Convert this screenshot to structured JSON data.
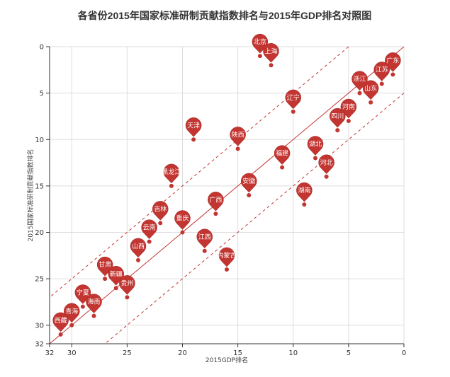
{
  "chart_data": {
    "type": "scatter",
    "title": "各省份2015年国家标准研制贡献指数排名与2015年GDP排名对照图",
    "xlabel": "2015GDP排名",
    "ylabel": "2015国家标准研制贡献指数排名",
    "x_reversed": true,
    "y_reversed": true,
    "xlim": [
      0,
      32
    ],
    "ylim": [
      0,
      32
    ],
    "x_ticks": [
      32,
      30,
      25,
      20,
      15,
      10,
      5,
      0
    ],
    "y_ticks": [
      0,
      5,
      10,
      15,
      20,
      25,
      30,
      32
    ],
    "grid": true,
    "reference_lines": [
      {
        "style": "solid",
        "offset": 0
      },
      {
        "style": "dashed",
        "offset": 5
      },
      {
        "style": "dashed",
        "offset": -5
      }
    ],
    "colors": {
      "pin": "#c23531",
      "pin_dark": "#a02523",
      "line": "#c23531",
      "grid": "#dddddd",
      "axis": "#333333"
    },
    "points": [
      {
        "name": "北京",
        "x": 13,
        "y": 1
      },
      {
        "name": "上海",
        "x": 12,
        "y": 2
      },
      {
        "name": "广东",
        "x": 1,
        "y": 3
      },
      {
        "name": "江苏",
        "x": 2,
        "y": 4
      },
      {
        "name": "浙江",
        "x": 4,
        "y": 5
      },
      {
        "name": "山东",
        "x": 3,
        "y": 6
      },
      {
        "name": "辽宁",
        "x": 10,
        "y": 7
      },
      {
        "name": "河南",
        "x": 5,
        "y": 8
      },
      {
        "name": "四川",
        "x": 6,
        "y": 9
      },
      {
        "name": "天津",
        "x": 19,
        "y": 10
      },
      {
        "name": "陕西",
        "x": 15,
        "y": 11
      },
      {
        "name": "湖北",
        "x": 8,
        "y": 12
      },
      {
        "name": "福建",
        "x": 11,
        "y": 13
      },
      {
        "name": "河北",
        "x": 7,
        "y": 14
      },
      {
        "name": "黑龙江",
        "x": 21,
        "y": 15
      },
      {
        "name": "安徽",
        "x": 14,
        "y": 16
      },
      {
        "name": "湖南",
        "x": 9,
        "y": 17
      },
      {
        "name": "广西",
        "x": 17,
        "y": 18
      },
      {
        "name": "吉林",
        "x": 22,
        "y": 19
      },
      {
        "name": "重庆",
        "x": 20,
        "y": 20
      },
      {
        "name": "云南",
        "x": 23,
        "y": 21
      },
      {
        "name": "江西",
        "x": 18,
        "y": 22
      },
      {
        "name": "山西",
        "x": 24,
        "y": 23
      },
      {
        "name": "内蒙古",
        "x": 16,
        "y": 24
      },
      {
        "name": "甘肃",
        "x": 27,
        "y": 25
      },
      {
        "name": "新疆",
        "x": 26,
        "y": 26
      },
      {
        "name": "贵州",
        "x": 25,
        "y": 27
      },
      {
        "name": "宁夏",
        "x": 29,
        "y": 28
      },
      {
        "name": "海南",
        "x": 28,
        "y": 29
      },
      {
        "name": "青海",
        "x": 30,
        "y": 30
      },
      {
        "name": "西藏",
        "x": 31,
        "y": 31
      }
    ]
  }
}
